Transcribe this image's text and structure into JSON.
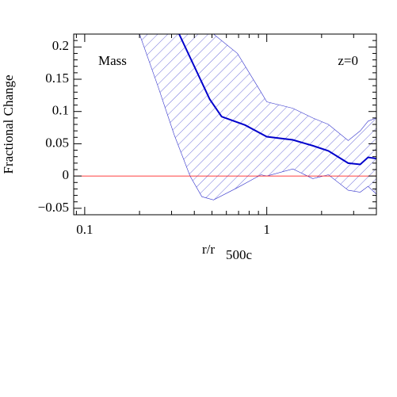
{
  "chart_data": {
    "type": "line",
    "y_label": "Fractional Change",
    "x_label": "r/r",
    "x_label_sub": "500c",
    "annotations": [
      "Mass",
      "z=0"
    ],
    "xscale": "log",
    "xlim": [
      0.087,
      4
    ],
    "ylim": [
      -0.06,
      0.22
    ],
    "xticks": [
      0.1,
      1
    ],
    "xminor_ticks": [
      0.09,
      0.2,
      0.3,
      0.4,
      0.5,
      0.6,
      0.7,
      0.8,
      0.9,
      2,
      3,
      4
    ],
    "yticks": [
      {
        "value": -0.05,
        "label": "−0.05"
      },
      0,
      0.05,
      0.1,
      0.15,
      0.2
    ],
    "yminor_ticks": [
      -0.06,
      -0.04,
      -0.03,
      -0.02,
      -0.01,
      0.01,
      0.02,
      0.03,
      0.04,
      0.06,
      0.07,
      0.08,
      0.09,
      0.11,
      0.12,
      0.13,
      0.14,
      0.16,
      0.17,
      0.18,
      0.19,
      0.21,
      0.22
    ],
    "reference_line": {
      "value": 0,
      "color": "#ff0000"
    },
    "x": [
      0.33,
      0.486,
      0.565,
      0.76,
      1,
      1.39,
      1.79,
      2.18,
      2.8,
      3.26,
      3.6,
      4
    ],
    "series": [
      {
        "color": "#0000cc",
        "values": [
          0.22,
          0.119,
          0.092,
          0.079,
          0.061,
          0.056,
          0.047,
          0.039,
          0.02,
          0.018,
          0.029,
          0.027
        ]
      }
    ],
    "band": {
      "color": "#3333cc",
      "x": [
        0.2,
        0.254,
        0.31,
        0.379,
        0.44,
        0.51,
        0.69,
        0.93,
        1,
        1.39,
        1.79,
        2.18,
        2.8,
        3.26,
        3.6,
        4
      ],
      "upper": [
        0.22,
        0.22,
        0.22,
        0.22,
        0.22,
        0.22,
        0.19,
        0.13,
        0.115,
        0.105,
        0.09,
        0.08,
        0.055,
        0.07,
        0.085,
        0.09
      ],
      "lower": [
        0.22,
        0.137,
        0.064,
        0,
        -0.032,
        -0.037,
        -0.018,
        0.002,
        0,
        0.011,
        -0.004,
        0.002,
        -0.022,
        -0.025,
        -0.016,
        -0.028
      ]
    }
  }
}
